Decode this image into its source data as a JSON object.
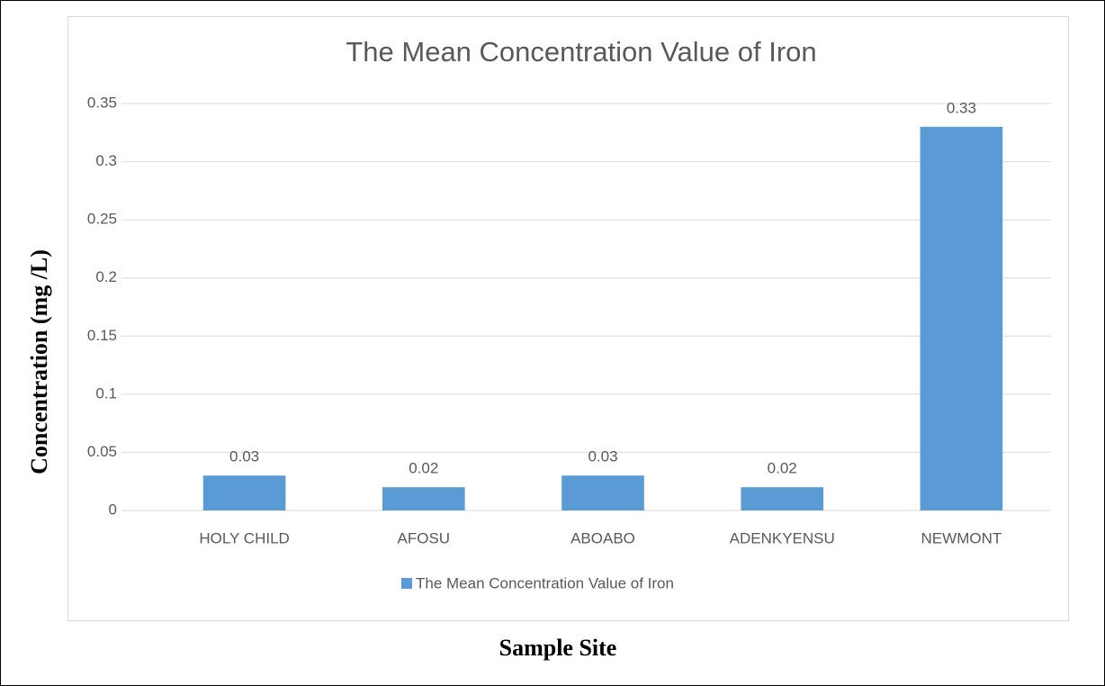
{
  "chart_data": {
    "type": "bar",
    "title": "The Mean Concentration Value of Iron",
    "y_axis_label": "Concentration (mg /L)",
    "x_axis_label": "Sample Site",
    "categories": [
      "HOLY CHILD",
      "AFOSU",
      "ABOABO",
      "ADENKYENSU",
      "NEWMONT"
    ],
    "series": [
      {
        "name": "The Mean Concentration Value of Iron",
        "color": "#5b9bd5",
        "values": [
          0.03,
          0.02,
          0.03,
          0.02,
          0.33
        ]
      }
    ],
    "ylim": [
      0,
      0.35
    ],
    "yticks": [
      0,
      0.05,
      0.1,
      0.15,
      0.2,
      0.25,
      0.3,
      0.35
    ],
    "grid": true,
    "legend": "bottom"
  }
}
